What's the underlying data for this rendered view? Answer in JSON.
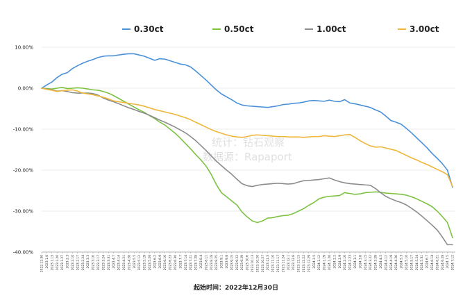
{
  "chart_data": {
    "type": "line",
    "title": "",
    "xlabel": "起始时间：2022年12月30日",
    "ylabel": "",
    "ylim": [
      -40,
      10
    ],
    "y_tick_labels": [
      "10.00%",
      "0.00%",
      "-10.00%",
      "-20.00%",
      "-30.00%",
      "-40.00%"
    ],
    "y_ticks": [
      10,
      0,
      -10,
      -20,
      -30,
      -40
    ],
    "grid": "horizontal",
    "legend_position": "top",
    "watermark": [
      "统计：钻石观察",
      "数据源：Rapaport"
    ],
    "x": [
      "2022.12.30",
      "2023.1.6",
      "2023.1.13",
      "2023.1.20",
      "2023.1.27",
      "2023.2.3",
      "2023.2.10",
      "2023.2.17",
      "2023.2.24",
      "2023.3.3",
      "2023.3.10",
      "2023.3.17",
      "2023.3.24",
      "2023.3.31",
      "2023.4.7",
      "2023.4.14",
      "2023.4.21",
      "2023.4.28",
      "2023.5.5",
      "2023.5.12",
      "2023.5.19",
      "2023.5.26",
      "2023.6.2",
      "2023.6.9",
      "2023.6.16",
      "2023.6.23",
      "2023.6.30",
      "2023.7.7",
      "2023.7.14",
      "2023.7.21",
      "2023.7.28",
      "2023.8.4",
      "2023.8.11",
      "2023.8.18",
      "2023.8.25",
      "2023.9.1",
      "2023.9.8",
      "2023.9.15",
      "2023.9.22",
      "2023.9.29",
      "2023.10.6",
      "2023.10.13",
      "2023.10.20",
      "2023.10.27",
      "2023.11.3",
      "2023.11.10",
      "2023.11.17",
      "2023.11.24",
      "2023.12.1",
      "2023.12.8",
      "2023.12.15",
      "2023.12.22",
      "2023.12.29",
      "2024.1.5",
      "2024.1.12",
      "2024.1.19",
      "2024.1.26",
      "2024.2.2",
      "2024.2.9",
      "2024.2.16",
      "2024.2.23",
      "2024.3.1",
      "2024.3.8",
      "2024.3.15",
      "2024.3.22",
      "2024.3.29",
      "2024.4.5",
      "2024.4.12",
      "2024.4.19",
      "2024.4.26",
      "2024.5.3",
      "2024.5.10",
      "2024.5.17",
      "2024.5.24",
      "2024.5.31",
      "2024.6.7",
      "2024.6.14",
      "2024.6.21",
      "2024.6.28",
      "2024.7.5",
      "2024.7.12"
    ],
    "series": [
      {
        "name": "0.30ct",
        "color": "#4a90d9",
        "values": [
          0,
          0.8,
          1.5,
          2.6,
          3.4,
          3.8,
          4.8,
          5.5,
          6.1,
          6.6,
          7.0,
          7.5,
          7.8,
          7.9,
          7.9,
          8.1,
          8.3,
          8.4,
          8.4,
          8.1,
          7.8,
          7.3,
          6.8,
          7.2,
          7.1,
          6.7,
          6.3,
          5.9,
          5.7,
          5.2,
          4.2,
          3.1,
          2.0,
          0.8,
          -0.4,
          -1.4,
          -2.1,
          -2.8,
          -3.6,
          -4.1,
          -4.3,
          -4.4,
          -4.5,
          -4.6,
          -4.7,
          -4.5,
          -4.3,
          -4.0,
          -3.9,
          -3.7,
          -3.6,
          -3.4,
          -3.1,
          -3.0,
          -3.1,
          -3.2,
          -2.9,
          -3.2,
          -3.3,
          -2.8,
          -3.6,
          -3.8,
          -4.1,
          -4.4,
          -4.7,
          -5.3,
          -5.8,
          -6.8,
          -7.9,
          -8.3,
          -8.8,
          -9.8,
          -10.9,
          -12.1,
          -13.3,
          -14.5,
          -15.9,
          -17.1,
          -18.4,
          -20.0,
          -24.2
        ]
      },
      {
        "name": "0.50ct",
        "color": "#7cc242",
        "values": [
          0,
          -0.1,
          -0.2,
          0,
          0.2,
          -0.1,
          0,
          0.1,
          0,
          -0.2,
          -0.4,
          -0.5,
          -0.8,
          -1.2,
          -1.8,
          -2.5,
          -3.2,
          -3.9,
          -4.6,
          -5.3,
          -5.9,
          -6.7,
          -7.4,
          -8.3,
          -9.0,
          -10.0,
          -11.0,
          -12.2,
          -13.5,
          -14.8,
          -16.2,
          -17.5,
          -19.0,
          -21.0,
          -23.5,
          -25.5,
          -26.5,
          -27.5,
          -28.5,
          -30.2,
          -31.4,
          -32.4,
          -32.8,
          -32.4,
          -31.7,
          -31.6,
          -31.3,
          -31.1,
          -31.0,
          -30.6,
          -30.0,
          -29.4,
          -28.6,
          -27.9,
          -27.0,
          -26.6,
          -26.4,
          -26.3,
          -26.2,
          -25.5,
          -25.7,
          -25.9,
          -25.8,
          -25.5,
          -25.4,
          -25.3,
          -25.4,
          -25.6,
          -25.7,
          -25.8,
          -25.9,
          -26.1,
          -26.5,
          -27.0,
          -27.6,
          -28.2,
          -28.9,
          -30.0,
          -31.3,
          -32.8,
          -36.5
        ]
      },
      {
        "name": "1.00ct",
        "color": "#8c8c8c",
        "values": [
          0,
          -0.2,
          -0.4,
          -0.7,
          -0.6,
          -0.8,
          -1.1,
          -1.2,
          -1.2,
          -1.2,
          -1.3,
          -1.7,
          -2.4,
          -2.9,
          -3.3,
          -3.8,
          -4.3,
          -4.8,
          -5.2,
          -5.7,
          -6.1,
          -6.6,
          -7.2,
          -7.8,
          -8.3,
          -8.9,
          -9.5,
          -10.2,
          -10.9,
          -11.8,
          -12.8,
          -14.0,
          -15.2,
          -16.5,
          -17.8,
          -18.9,
          -20.0,
          -21.0,
          -22.2,
          -23.3,
          -23.8,
          -24.0,
          -23.7,
          -23.5,
          -23.4,
          -23.3,
          -23.2,
          -23.3,
          -23.4,
          -23.3,
          -22.9,
          -22.6,
          -22.5,
          -22.4,
          -22.3,
          -22.1,
          -21.9,
          -22.4,
          -22.8,
          -23.1,
          -23.3,
          -23.4,
          -23.5,
          -23.6,
          -23.7,
          -24.5,
          -25.5,
          -26.4,
          -27.0,
          -27.5,
          -27.9,
          -28.5,
          -29.3,
          -30.2,
          -31.2,
          -32.3,
          -33.4,
          -34.6,
          -36.3,
          -38.2,
          -38.2
        ]
      },
      {
        "name": "3.00ct",
        "color": "#f0b63a",
        "values": [
          0,
          -0.3,
          -0.5,
          -0.8,
          -0.6,
          -0.5,
          -0.4,
          -0.7,
          -1.2,
          -1.4,
          -1.6,
          -1.9,
          -2.2,
          -2.6,
          -3.1,
          -3.3,
          -3.5,
          -3.7,
          -3.9,
          -4.1,
          -4.4,
          -4.8,
          -5.2,
          -5.5,
          -5.8,
          -6.1,
          -6.4,
          -6.8,
          -7.2,
          -7.7,
          -8.3,
          -8.9,
          -9.5,
          -10.1,
          -10.6,
          -11.0,
          -11.4,
          -11.7,
          -11.9,
          -12.0,
          -11.8,
          -11.5,
          -11.4,
          -11.5,
          -11.6,
          -11.7,
          -11.8,
          -11.8,
          -11.9,
          -11.9,
          -11.9,
          -12.0,
          -11.9,
          -11.8,
          -11.8,
          -11.6,
          -11.7,
          -11.8,
          -11.6,
          -11.4,
          -11.3,
          -12.0,
          -12.8,
          -13.5,
          -14.1,
          -14.4,
          -14.3,
          -14.6,
          -14.9,
          -15.2,
          -15.8,
          -16.4,
          -17.0,
          -17.5,
          -18.1,
          -18.6,
          -19.2,
          -19.8,
          -20.4,
          -21.1,
          -24.0
        ]
      }
    ]
  }
}
